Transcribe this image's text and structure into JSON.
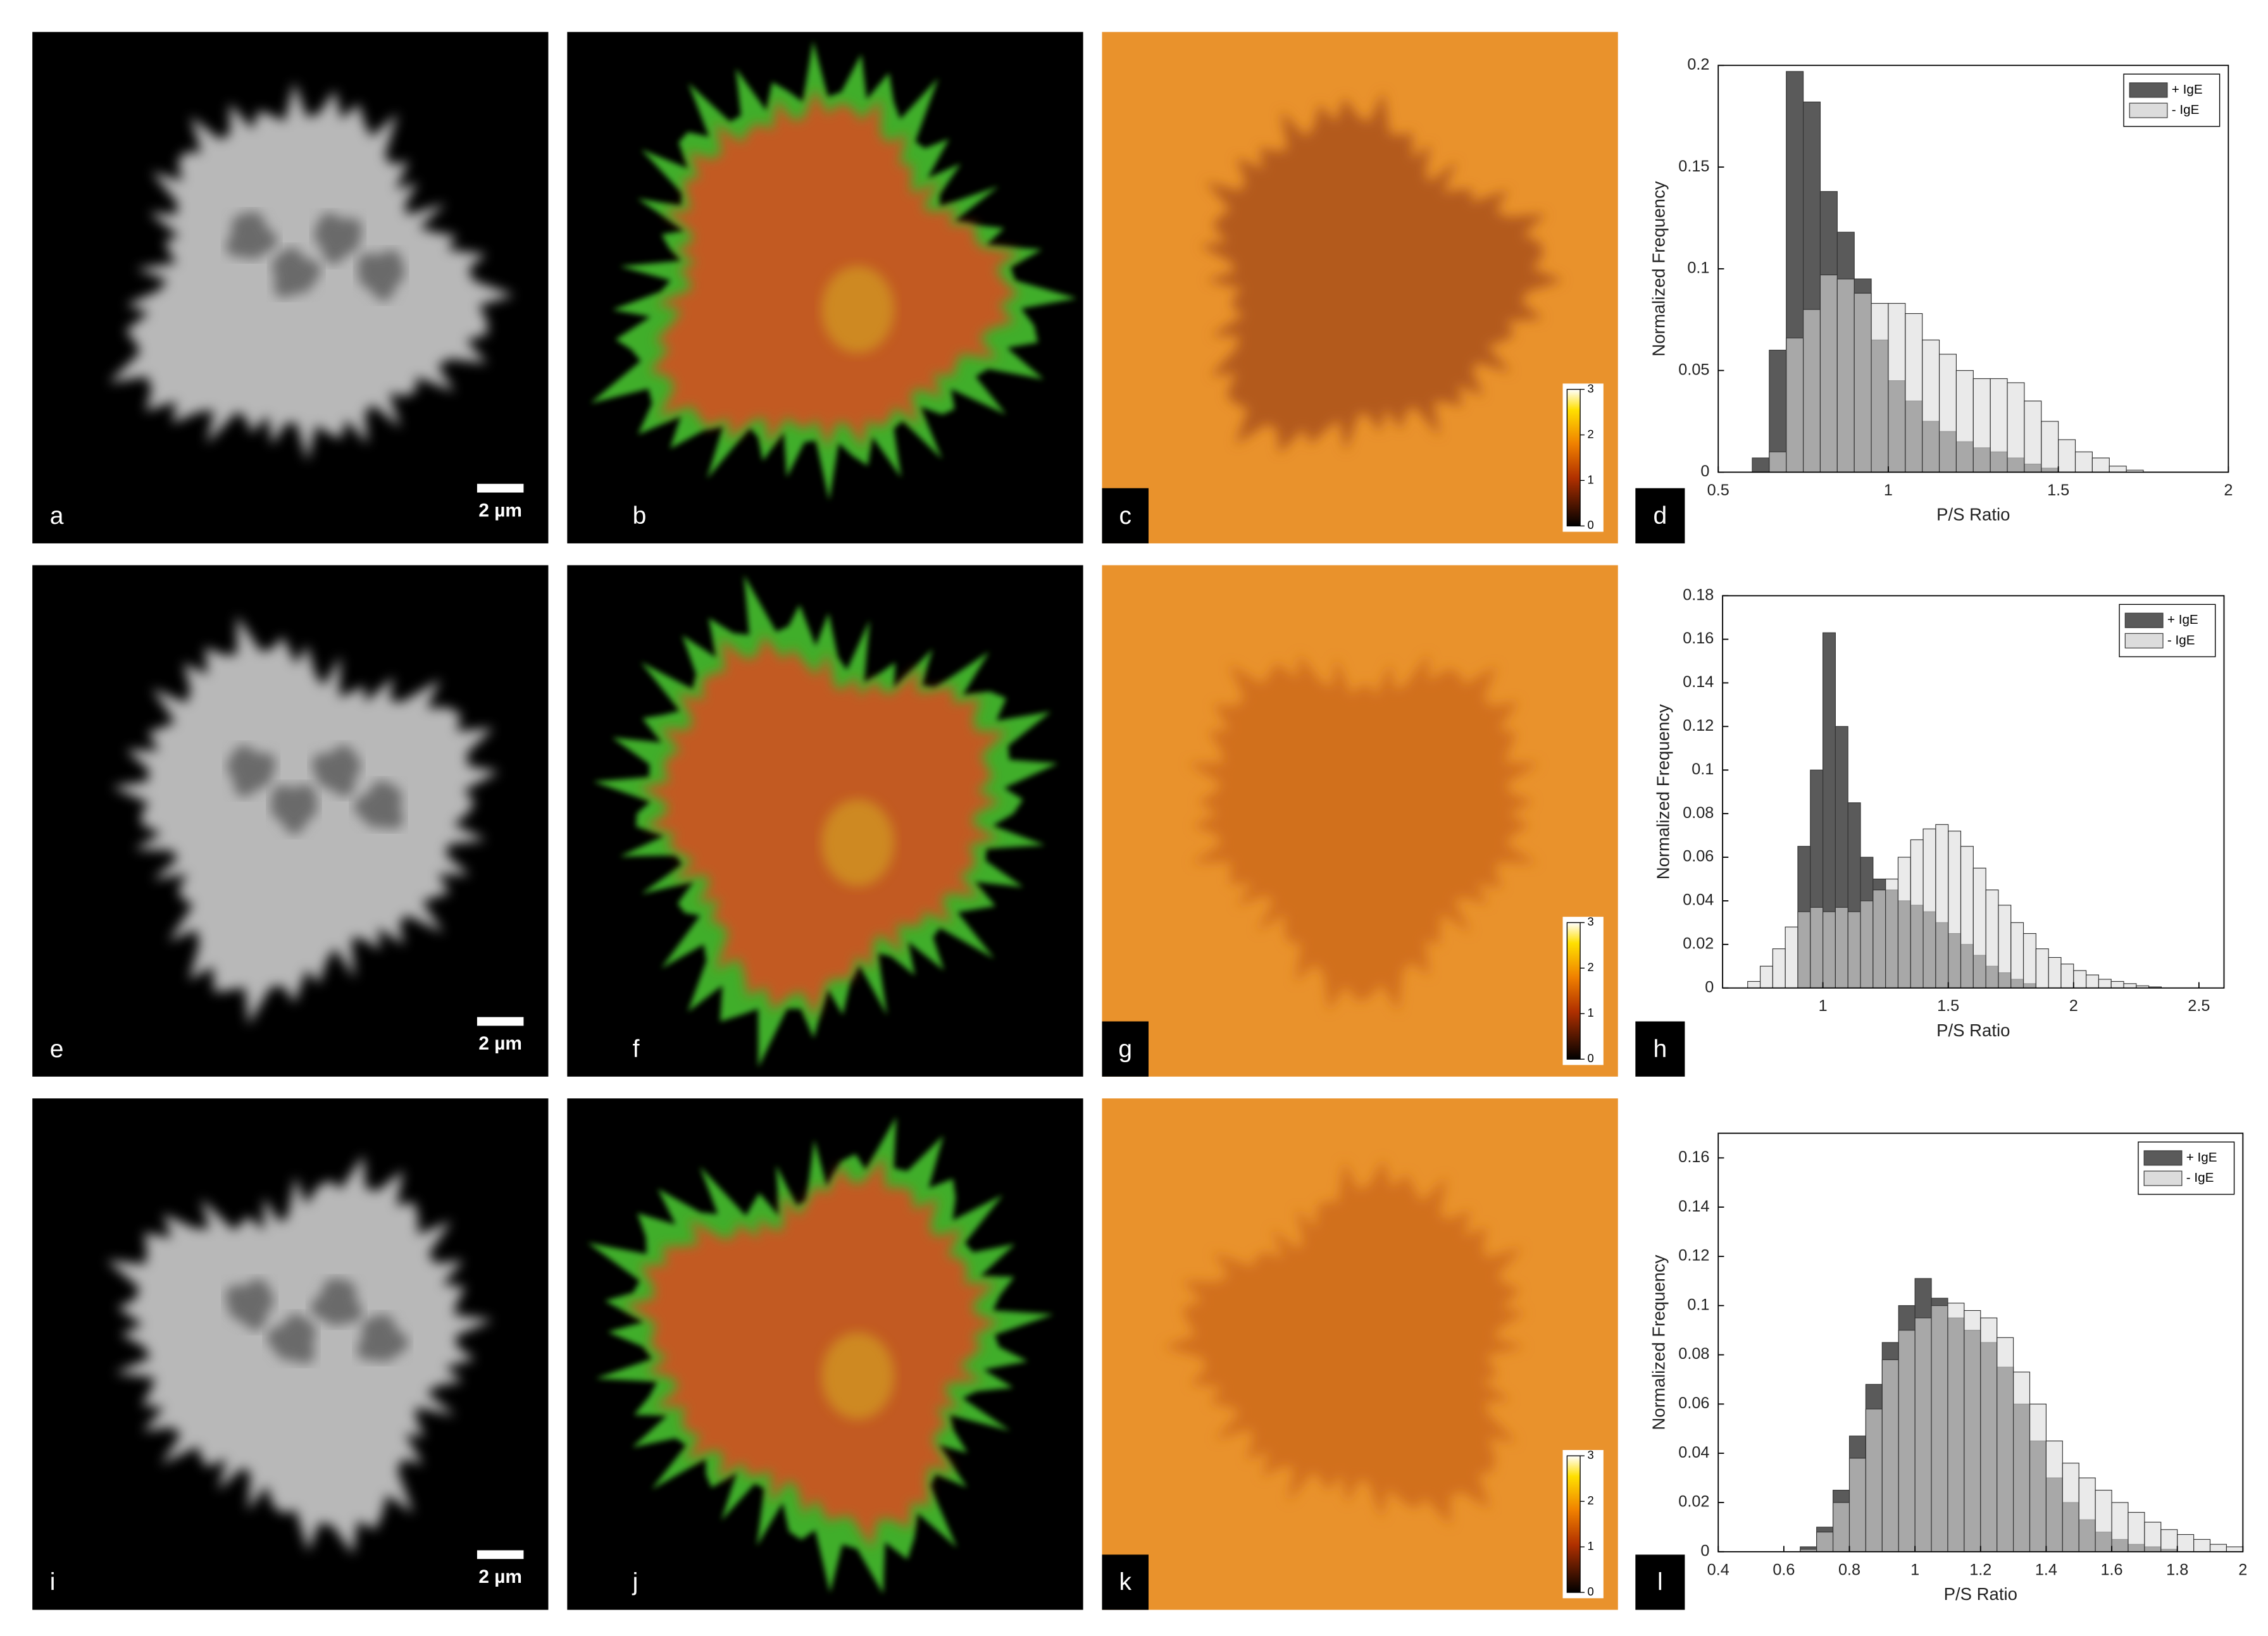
{
  "panels": [
    {
      "label": "a",
      "scale_bar": "2 µm"
    },
    {
      "label": "b"
    },
    {
      "label": "c",
      "colorbar_ticks": [
        0,
        1,
        2,
        3
      ]
    },
    {
      "label": "d"
    },
    {
      "label": "e",
      "scale_bar": "2 µm"
    },
    {
      "label": "f"
    },
    {
      "label": "g",
      "colorbar_ticks": [
        0,
        1,
        2,
        3
      ]
    },
    {
      "label": "h"
    },
    {
      "label": "i",
      "scale_bar": "2 µm"
    },
    {
      "label": "j"
    },
    {
      "label": "k",
      "colorbar_ticks": [
        0,
        1,
        2,
        3
      ]
    },
    {
      "label": "l"
    }
  ],
  "chart_data": [
    {
      "type": "histogram",
      "xlabel": "P/S Ratio",
      "ylabel": "Normalized Frequency",
      "legend": "upper right",
      "bins": [
        0.6,
        0.65,
        0.7,
        0.75,
        0.8,
        0.85,
        0.9,
        0.95,
        1.0,
        1.05,
        1.1,
        1.15,
        1.2,
        1.25,
        1.3,
        1.35,
        1.4,
        1.45,
        1.5,
        1.55,
        1.6,
        1.65,
        1.7,
        1.75
      ],
      "series": [
        {
          "name": "+ IgE",
          "color": "#5a5a5a",
          "values": [
            0.007,
            0.06,
            0.197,
            0.182,
            0.138,
            0.118,
            0.095,
            0.065,
            0.045,
            0.035,
            0.025,
            0.02,
            0.015,
            0.012,
            0.01,
            0.007,
            0.004,
            0.002,
            0,
            0,
            0,
            0,
            0
          ]
        },
        {
          "name": "- IgE",
          "color": "#dcdcdc",
          "values": [
            0,
            0.01,
            0.066,
            0.08,
            0.097,
            0.095,
            0.088,
            0.083,
            0.083,
            0.078,
            0.065,
            0.058,
            0.05,
            0.046,
            0.046,
            0.044,
            0.035,
            0.025,
            0.016,
            0.01,
            0.007,
            0.003,
            0.001
          ]
        }
      ],
      "xlim": [
        0.5,
        2
      ],
      "xticks": [
        0.5,
        1,
        1.5,
        2
      ],
      "ylim": [
        0,
        0.2
      ],
      "yticks": [
        0,
        0.05,
        0.1,
        0.15,
        0.2
      ]
    },
    {
      "type": "histogram",
      "xlabel": "P/S Ratio",
      "ylabel": "Normalized Frequency",
      "legend": "upper right",
      "bins": [
        0.7,
        0.75,
        0.8,
        0.85,
        0.9,
        0.95,
        1.0,
        1.05,
        1.1,
        1.15,
        1.2,
        1.25,
        1.3,
        1.35,
        1.4,
        1.45,
        1.5,
        1.55,
        1.6,
        1.65,
        1.7,
        1.75,
        1.8,
        1.85,
        1.9,
        1.95,
        2.0,
        2.05,
        2.1,
        2.15,
        2.2,
        2.25,
        2.3,
        2.35
      ],
      "series": [
        {
          "name": "+ IgE",
          "color": "#5a5a5a",
          "values": [
            0,
            0,
            0,
            0,
            0.065,
            0.1,
            0.163,
            0.12,
            0.085,
            0.06,
            0.05,
            0.045,
            0.04,
            0.038,
            0.035,
            0.03,
            0.025,
            0.02,
            0.015,
            0.01,
            0.007,
            0.004,
            0.002,
            0,
            0,
            0,
            0,
            0,
            0,
            0,
            0,
            0,
            0
          ]
        },
        {
          "name": "- IgE",
          "color": "#dcdcdc",
          "values": [
            0.003,
            0.01,
            0.018,
            0.028,
            0.035,
            0.037,
            0.035,
            0.037,
            0.035,
            0.04,
            0.045,
            0.05,
            0.06,
            0.068,
            0.073,
            0.075,
            0.072,
            0.065,
            0.055,
            0.045,
            0.038,
            0.03,
            0.025,
            0.018,
            0.014,
            0.011,
            0.008,
            0.006,
            0.004,
            0.003,
            0.002,
            0.001,
            0.0005
          ]
        }
      ],
      "xlim": [
        0.6,
        2.6
      ],
      "xticks": [
        1,
        1.5,
        2,
        2.5
      ],
      "ylim": [
        0,
        0.18
      ],
      "yticks": [
        0,
        0.02,
        0.04,
        0.06,
        0.08,
        0.1,
        0.12,
        0.14,
        0.16,
        0.18
      ]
    },
    {
      "type": "histogram",
      "xlabel": "P/S Ratio",
      "ylabel": "Normalized Frequency",
      "legend": "upper right",
      "bins": [
        0.65,
        0.7,
        0.75,
        0.8,
        0.85,
        0.9,
        0.95,
        1.0,
        1.05,
        1.1,
        1.15,
        1.2,
        1.25,
        1.3,
        1.35,
        1.4,
        1.45,
        1.5,
        1.55,
        1.6,
        1.65,
        1.7,
        1.75,
        1.8,
        1.85,
        1.9,
        1.95,
        2.0
      ],
      "series": [
        {
          "name": "+ IgE",
          "color": "#5a5a5a",
          "values": [
            0.002,
            0.01,
            0.025,
            0.047,
            0.068,
            0.085,
            0.1,
            0.111,
            0.103,
            0.095,
            0.09,
            0.085,
            0.075,
            0.06,
            0.045,
            0.03,
            0.02,
            0.013,
            0.008,
            0.005,
            0.003,
            0.002,
            0.001,
            0,
            0,
            0,
            0
          ]
        },
        {
          "name": "- IgE",
          "color": "#dcdcdc",
          "values": [
            0.001,
            0.008,
            0.02,
            0.038,
            0.058,
            0.078,
            0.09,
            0.095,
            0.1,
            0.101,
            0.098,
            0.095,
            0.087,
            0.073,
            0.06,
            0.045,
            0.036,
            0.03,
            0.025,
            0.02,
            0.016,
            0.012,
            0.009,
            0.007,
            0.005,
            0.003,
            0.002
          ]
        }
      ],
      "xlim": [
        0.4,
        2
      ],
      "xticks": [
        0.4,
        0.6,
        0.8,
        1,
        1.2,
        1.4,
        1.6,
        1.8,
        2
      ],
      "ylim": [
        0,
        0.17
      ],
      "yticks": [
        0,
        0.02,
        0.04,
        0.06,
        0.08,
        0.1,
        0.12,
        0.14,
        0.16
      ]
    }
  ]
}
